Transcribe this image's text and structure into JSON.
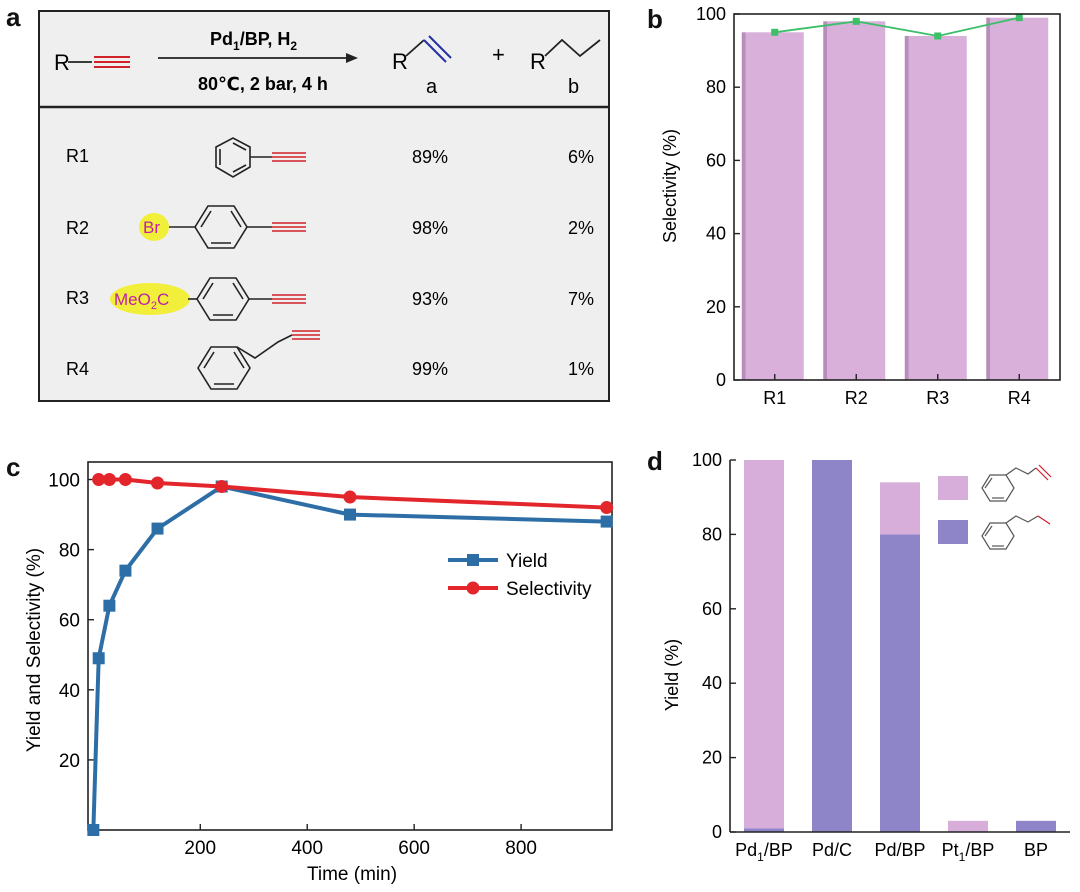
{
  "panel_labels": [
    "a",
    "b",
    "c",
    "d"
  ],
  "panel_a": {
    "reactant_label": "R",
    "catalyst": "Pd",
    "catalyst_sub": "1",
    "catalyst_rest": "/BP, H",
    "h2_sub": "2",
    "conditions": "80℃,  2 bar, 4 h",
    "product_a_R": "R",
    "product_a_label": "a",
    "plus": "+",
    "product_b_R": "R",
    "product_b_label": "b",
    "rows": [
      {
        "id": "R1",
        "substituent": "",
        "a": "89%",
        "b": "6%",
        "alkyne": "phenylacetylene"
      },
      {
        "id": "R2",
        "substituent": "Br",
        "a": "98%",
        "b": "2%",
        "alkyne": "4-bromophenylacetylene"
      },
      {
        "id": "R3",
        "substituent": "MeO2C",
        "a": "93%",
        "b": "7%",
        "alkyne": "methyl 4-ethynylbenzoate"
      },
      {
        "id": "R4",
        "substituent": "",
        "a": "99%",
        "b": "1%",
        "alkyne": "4-phenyl-1-butyne"
      }
    ],
    "r3_sub_main": "MeO",
    "r3_sub_2": "2",
    "r3_sub_end": "C"
  },
  "chart_data": [
    {
      "panel": "b",
      "type": "bar",
      "categories": [
        "R1",
        "R2",
        "R3",
        "R4"
      ],
      "values": [
        95,
        98,
        94,
        99
      ],
      "line_values": [
        95,
        98,
        94,
        99
      ],
      "ylabel": "Selectivity (%)",
      "xlabel": "",
      "ylim": [
        0,
        100
      ],
      "yticks": [
        0,
        20,
        40,
        60,
        80,
        100
      ],
      "bar_color": "#d8b0da",
      "line_color": "#3dbf6a"
    },
    {
      "panel": "c",
      "type": "line",
      "xlabel": "Time (min)",
      "ylabel": "Yield and Selectivity (%)",
      "xlim": [
        -10,
        970
      ],
      "ylim": [
        0,
        105
      ],
      "xticks": [
        200,
        400,
        600,
        800
      ],
      "yticks": [
        20,
        40,
        60,
        80,
        100
      ],
      "series": [
        {
          "name": "Yield",
          "color": "#2e6ea6",
          "marker": "square",
          "x": [
            0,
            10,
            30,
            60,
            120,
            240,
            480,
            960
          ],
          "y": [
            0,
            49,
            64,
            74,
            86,
            98,
            90,
            88
          ]
        },
        {
          "name": "Selectivity",
          "color": "#e3262b",
          "marker": "circle",
          "x": [
            10,
            30,
            60,
            120,
            240,
            480,
            960
          ],
          "y": [
            100,
            100,
            100,
            99,
            98,
            95,
            92
          ]
        }
      ]
    },
    {
      "panel": "d",
      "type": "bar",
      "stacked": true,
      "categories": [
        "Pd1/BP",
        "Pd/C",
        "Pd/BP",
        "Pt1/BP",
        "BP"
      ],
      "category_labels": [
        {
          "main": "Pd",
          "sub": "1",
          "rest": "/BP"
        },
        {
          "main": "Pd/C",
          "sub": "",
          "rest": ""
        },
        {
          "main": "Pd/BP",
          "sub": "",
          "rest": ""
        },
        {
          "main": "Pt",
          "sub": "1",
          "rest": "/BP"
        },
        {
          "main": "BP",
          "sub": "",
          "rest": ""
        }
      ],
      "ylabel": "Yield (%)",
      "ylim": [
        0,
        100
      ],
      "yticks": [
        0,
        20,
        40,
        60,
        80,
        100
      ],
      "series": [
        {
          "name": "4-phenyl-1-butene (alkene)",
          "color": "#d6aed9",
          "values": [
            99,
            0,
            14,
            3,
            0
          ]
        },
        {
          "name": "butylbenzene (alkane)",
          "color": "#8e84c8",
          "values": [
            1,
            100,
            80,
            0,
            3
          ]
        }
      ]
    }
  ]
}
